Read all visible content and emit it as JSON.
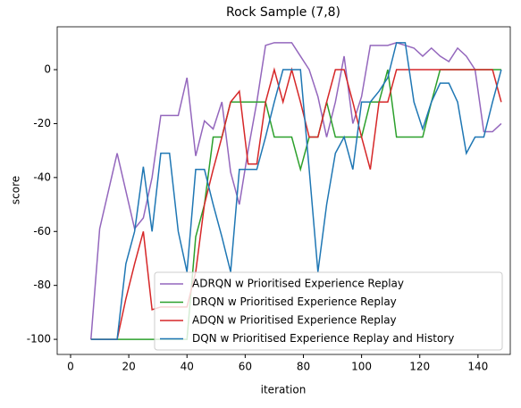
{
  "chart_data": {
    "type": "line",
    "title": "Rock Sample (7,8)",
    "xlabel": "iteration",
    "ylabel": "score",
    "x": [
      7,
      10,
      13,
      16,
      19,
      22,
      25,
      28,
      31,
      34,
      37,
      40,
      43,
      46,
      49,
      52,
      55,
      58,
      61,
      64,
      67,
      70,
      73,
      76,
      79,
      82,
      85,
      88,
      91,
      94,
      97,
      100,
      103,
      106,
      109,
      112,
      115,
      118,
      121,
      124,
      127,
      130,
      133,
      136,
      139,
      142,
      145,
      148
    ],
    "series": [
      {
        "name": "ADRQN w Prioritised Experience Replay",
        "color": "#9467bd",
        "values": [
          -100,
          -59,
          -45,
          -31,
          -45,
          -59,
          -55,
          -40,
          -17,
          -17,
          -17,
          -3,
          -32,
          -19,
          -22,
          -12,
          -38,
          -50,
          -30,
          -12,
          9,
          10,
          10,
          10,
          5,
          0,
          -10,
          -25,
          -12,
          5,
          -20,
          -10,
          9,
          9,
          9,
          10,
          9,
          8,
          5,
          8,
          5,
          3,
          8,
          5,
          0,
          -23,
          -23,
          -20
        ]
      },
      {
        "name": "DRQN w Prioritised Experience Replay",
        "color": "#2ca02c",
        "values": [
          -100,
          -100,
          -100,
          -100,
          -100,
          -100,
          -100,
          -100,
          -100,
          -100,
          -100,
          -100,
          -62,
          -50,
          -25,
          -25,
          -12,
          -12,
          -12,
          -12,
          -12,
          -25,
          -25,
          -25,
          -37,
          -25,
          -25,
          -12,
          -25,
          -25,
          -25,
          -25,
          -12,
          -12,
          0,
          -25,
          -25,
          -25,
          -25,
          -12,
          0,
          0,
          0,
          0,
          0,
          0,
          0,
          0
        ]
      },
      {
        "name": "ADQN w Prioritised Experience Replay",
        "color": "#d62728",
        "values": [
          -100,
          -100,
          -100,
          -100,
          -85,
          -72,
          -60,
          -89,
          -88,
          -88,
          -88,
          -88,
          -75,
          -50,
          -37,
          -25,
          -12,
          -8,
          -35,
          -35,
          -12,
          0,
          -12,
          0,
          -12,
          -25,
          -25,
          -12,
          0,
          0,
          -12,
          -25,
          -37,
          -12,
          -12,
          0,
          0,
          0,
          0,
          0,
          0,
          0,
          0,
          0,
          0,
          0,
          0,
          -12
        ]
      },
      {
        "name": "DQN w Prioritised Experience Replay and History",
        "color": "#1f77b4",
        "values": [
          -100,
          -100,
          -100,
          -100,
          -72,
          -60,
          -36,
          -60,
          -31,
          -31,
          -60,
          -75,
          -37,
          -37,
          -50,
          -62,
          -75,
          -37,
          -37,
          -37,
          -25,
          -12,
          0,
          0,
          0,
          -37,
          -75,
          -50,
          -31,
          -25,
          -37,
          -12,
          -12,
          -8,
          -3,
          10,
          10,
          -12,
          -22,
          -12,
          -5,
          -5,
          -12,
          -31,
          -25,
          -25,
          -12,
          0
        ]
      }
    ],
    "xlim": [
      -4.6,
      151.1
    ],
    "ylim": [
      -105.6,
      15.9
    ],
    "xticks": [
      0,
      20,
      40,
      60,
      80,
      100,
      120,
      140
    ],
    "yticks": [
      -100,
      -80,
      -60,
      -40,
      -20,
      0
    ],
    "legend": "lower right"
  }
}
